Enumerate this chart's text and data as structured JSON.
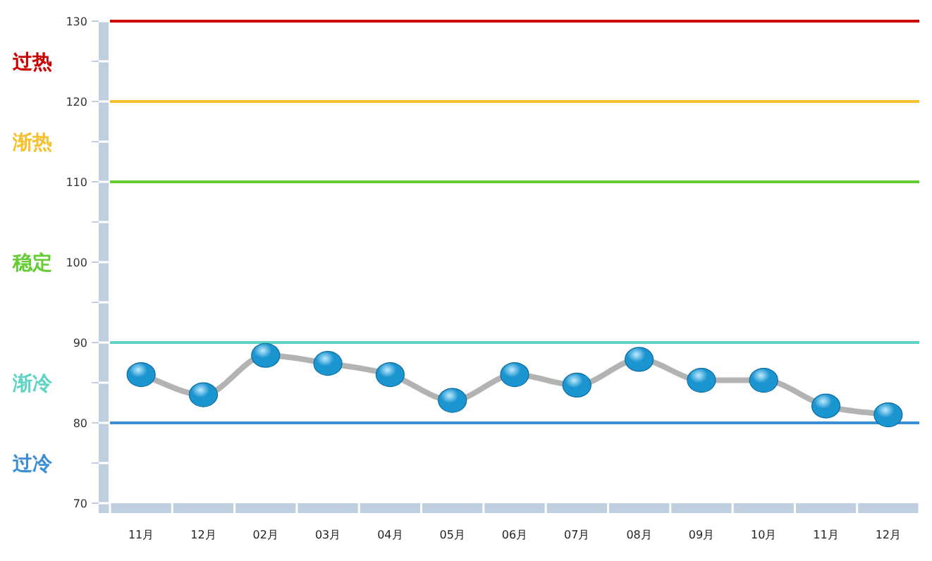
{
  "chart_data": {
    "type": "line",
    "categories": [
      "11月",
      "12月",
      "02月",
      "03月",
      "04月",
      "05月",
      "06月",
      "07月",
      "08月",
      "09月",
      "10月",
      "11月",
      "12月"
    ],
    "series": [
      {
        "color": "#b3b3b3",
        "colors": [
          "#1b95d0",
          "#1b95d0",
          "#1b95d0",
          "#1b95d0",
          "#1b95d0",
          "#1b95d0",
          "#1b95d0",
          "#1b95d0",
          "#1b95d0",
          "#1b95d0",
          "#1b95d0",
          "#1b95d0",
          "#1b95d0"
        ],
        "values": [
          86,
          83.5,
          88.4,
          87.4,
          86,
          82.8,
          86,
          84.7,
          87.9,
          85.3,
          85.3,
          82.1,
          81
        ]
      }
    ],
    "ylim": [
      70,
      130
    ],
    "yticks": [
      70,
      {
        "value": 75,
        "label": null
      },
      80,
      {
        "value": 85,
        "label": null
      },
      90,
      {
        "value": 95,
        "label": null
      },
      100,
      {
        "value": 105,
        "label": null
      },
      110,
      {
        "value": 115,
        "label": null
      },
      120,
      {
        "value": 125,
        "label": null
      },
      130
    ],
    "ref_lines": [
      {
        "axis": "y",
        "value": 130,
        "color": "#cc0000"
      },
      {
        "axis": "y",
        "value": 120,
        "color": "#f5c12e"
      },
      {
        "axis": "y",
        "value": 110,
        "color": "#66cc33"
      },
      {
        "axis": "y",
        "value": 90,
        "color": "#5fd3c4"
      },
      {
        "axis": "y",
        "value": 80,
        "color": "#3a8fd6"
      }
    ],
    "annotations": [
      "过热",
      "渐热",
      "稳定",
      "渐冷",
      "过冷"
    ],
    "marker": "circle",
    "grid": false
  }
}
